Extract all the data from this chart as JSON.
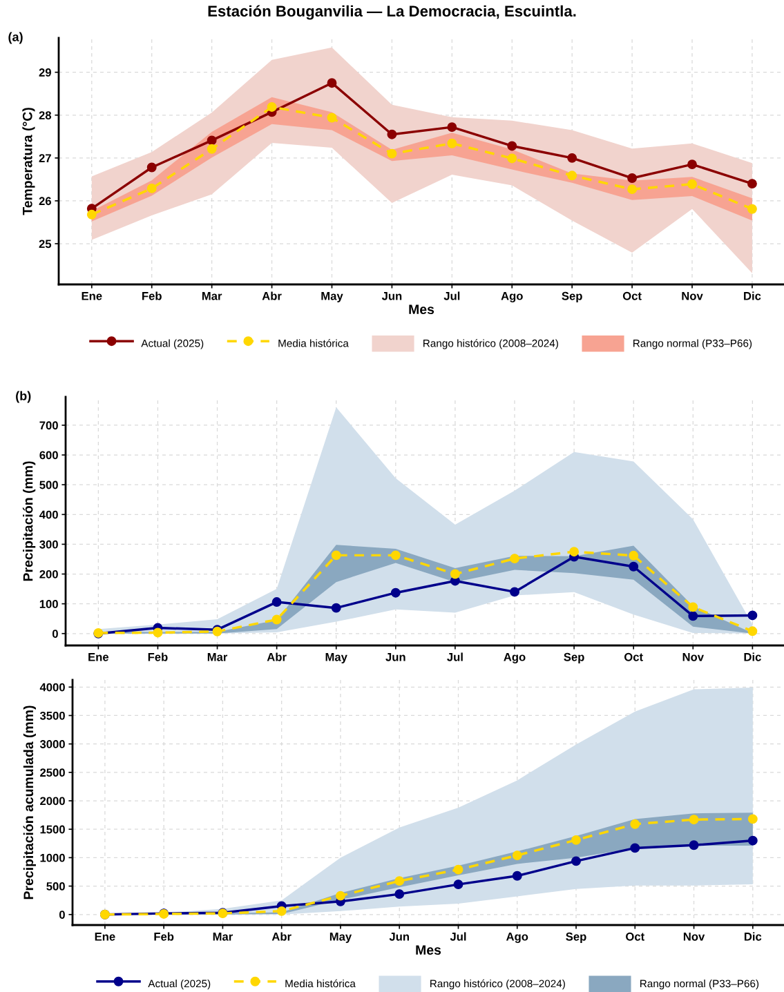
{
  "chart_data": [
    {
      "type": "line",
      "title": "Estación Bouganvilia — La Democracia, Escuintla.",
      "annotations": [
        "(a)"
      ],
      "xlabel": "Mes",
      "ylabel": "Temperatura (°C)",
      "categories": [
        "Ene",
        "Feb",
        "Mar",
        "Abr",
        "May",
        "Jun",
        "Jul",
        "Ago",
        "Sep",
        "Oct",
        "Nov",
        "Dic"
      ],
      "ylim": [
        24.05,
        29.8
      ],
      "yticks": [
        25,
        26,
        27,
        28,
        29
      ],
      "grid": true,
      "legend": "bottom",
      "series": [
        {
          "name": "Actual (2025)",
          "color": "#8b0000",
          "marker": "circle",
          "values": [
            25.82,
            26.78,
            27.41,
            28.07,
            28.75,
            27.55,
            27.72,
            27.28,
            27.0,
            26.53,
            26.85,
            26.4
          ]
        },
        {
          "name": "Media histórica",
          "color": "#ffd700",
          "marker": "circle",
          "line_style": "dashed",
          "values": [
            25.68,
            26.29,
            27.21,
            28.19,
            27.94,
            27.1,
            27.34,
            26.99,
            26.59,
            26.27,
            26.39,
            25.81
          ]
        },
        {
          "name": "Rango histórico (2008–2024)",
          "type": "area",
          "color": "#f1d3cd",
          "values": [
            null,
            null,
            null,
            null,
            null,
            null,
            null,
            null,
            null,
            null,
            null,
            null
          ],
          "lower": [
            25.09,
            25.66,
            26.15,
            27.35,
            27.24,
            25.95,
            26.61,
            26.36,
            25.54,
            24.79,
            25.81,
            24.31
          ],
          "upper": [
            26.57,
            27.14,
            28.06,
            29.29,
            29.58,
            28.24,
            27.95,
            27.87,
            27.65,
            27.22,
            27.34,
            26.88
          ]
        },
        {
          "name": "Rango normal (P33–P66)",
          "type": "area",
          "color": "#f7a392",
          "values": [
            null,
            null,
            null,
            null,
            null,
            null,
            null,
            null,
            null,
            null,
            null,
            null
          ],
          "lower": [
            25.52,
            26.12,
            27.01,
            27.79,
            27.65,
            26.93,
            27.06,
            26.73,
            26.42,
            26.02,
            26.11,
            25.54
          ],
          "upper": [
            25.76,
            26.48,
            27.61,
            28.42,
            28.07,
            27.19,
            27.59,
            27.2,
            26.64,
            26.47,
            26.56,
            26.06
          ]
        }
      ]
    },
    {
      "type": "line",
      "annotations": [
        "(b)"
      ],
      "ylabel": "Precipitación (mm)",
      "categories": [
        "Ene",
        "Feb",
        "Mar",
        "Abr",
        "May",
        "Jun",
        "Jul",
        "Ago",
        "Sep",
        "Oct",
        "Nov",
        "Dic"
      ],
      "ylim": [
        -40,
        795
      ],
      "yticks": [
        0,
        100,
        200,
        300,
        400,
        500,
        600,
        700
      ],
      "grid": true,
      "series": [
        {
          "color": "#00008b",
          "marker": "circle",
          "values": [
            0,
            19,
            13,
            106,
            86,
            137,
            177,
            140,
            258,
            225,
            59,
            61
          ]
        },
        {
          "color": "#ffd700",
          "marker": "circle",
          "line_style": "dashed",
          "values": [
            2,
            3,
            7,
            47,
            263,
            263,
            200,
            252,
            275,
            262,
            89,
            8
          ]
        },
        {
          "type": "area",
          "color": "#d1dfeb",
          "values": [
            null,
            null,
            null,
            null,
            null,
            null,
            null,
            null,
            null,
            null,
            null,
            null
          ],
          "lower": [
            0,
            0,
            0,
            4,
            40,
            81,
            70,
            128,
            139,
            64,
            2,
            0
          ],
          "upper": [
            15,
            30,
            48,
            150,
            760,
            522,
            366,
            480,
            610,
            578,
            384,
            30
          ]
        },
        {
          "type": "area",
          "color": "#8aa8c0",
          "values": [
            null,
            null,
            null,
            null,
            null,
            null,
            null,
            null,
            null,
            null,
            null,
            null
          ],
          "lower": [
            0,
            0,
            0,
            15,
            173,
            237,
            173,
            214,
            203,
            181,
            23,
            0
          ],
          "upper": [
            5,
            5,
            6,
            45,
            298,
            285,
            220,
            261,
            260,
            295,
            92,
            2
          ]
        }
      ]
    },
    {
      "type": "line",
      "xlabel": "Mes",
      "ylabel": "Precipitación acumulada (mm)",
      "categories": [
        "Ene",
        "Feb",
        "Mar",
        "Abr",
        "May",
        "Jun",
        "Jul",
        "Ago",
        "Sep",
        "Oct",
        "Nov",
        "Dic"
      ],
      "ylim": [
        -185,
        4125
      ],
      "yticks": [
        0,
        500,
        1000,
        1500,
        2000,
        2500,
        3000,
        3500,
        4000
      ],
      "grid": true,
      "legend": "bottom",
      "series": [
        {
          "name": "Actual (2025)",
          "color": "#00008b",
          "marker": "circle",
          "values": [
            0,
            20,
            30,
            150,
            230,
            360,
            530,
            680,
            940,
            1170,
            1220,
            1300
          ]
        },
        {
          "name": "Media histórica",
          "color": "#ffd700",
          "marker": "circle",
          "line_style": "dashed",
          "values": [
            0,
            10,
            20,
            60,
            330,
            590,
            790,
            1040,
            1310,
            1590,
            1670,
            1680
          ]
        },
        {
          "name": "Rango histórico (2008–2024)",
          "type": "area",
          "color": "#d1dfeb",
          "values": [
            null,
            null,
            null,
            null,
            null,
            null,
            null,
            null,
            null,
            null,
            null,
            null
          ],
          "lower": [
            0,
            0,
            0,
            0,
            60,
            140,
            190,
            320,
            450,
            510,
            510,
            530
          ],
          "upper": [
            0,
            30,
            100,
            250,
            1000,
            1530,
            1880,
            2360,
            2990,
            3570,
            3960,
            3990
          ]
        },
        {
          "name": "Rango normal (P33–P66)",
          "type": "area",
          "color": "#8aa8c0",
          "values": [
            null,
            null,
            null,
            null,
            null,
            null,
            null,
            null,
            null,
            null,
            null,
            null
          ],
          "lower": [
            0,
            0,
            0,
            10,
            260,
            480,
            690,
            890,
            1000,
            1170,
            1210,
            1210
          ],
          "upper": [
            0,
            0,
            20,
            40,
            380,
            640,
            860,
            1110,
            1380,
            1680,
            1780,
            1790
          ]
        }
      ]
    }
  ]
}
